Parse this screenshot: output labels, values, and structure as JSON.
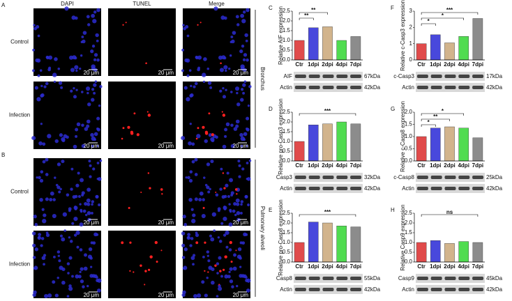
{
  "microscopy": {
    "columns": [
      "DAPI",
      "TUNEL",
      "Merge"
    ],
    "rows": [
      "Control",
      "Infection"
    ],
    "groups": [
      {
        "panel": "A",
        "tissue": "Bronchus"
      },
      {
        "panel": "B",
        "tissue": "Pulmonary alveoli"
      }
    ],
    "scale_bar": "20 μm"
  },
  "chart_data": [
    {
      "type": "bar",
      "panel": "C",
      "y_label": "Relative AIF expression",
      "categories": [
        "Ctr",
        "1dpi",
        "2dpi",
        "4dpi",
        "7dpi"
      ],
      "values": [
        1.0,
        1.65,
        1.7,
        1.0,
        1.2
      ],
      "colors": [
        "#e04b4b",
        "#4848dc",
        "#d2b48c",
        "#50dc50",
        "#8c8c8c"
      ],
      "ylim": [
        0,
        2.5
      ],
      "yticks": [
        {
          "value": 0,
          "label": "0.0"
        },
        0.5,
        {
          "value": 1,
          "label": "1.0"
        },
        1.5,
        {
          "value": 2,
          "label": "2.0"
        },
        2.5
      ],
      "annotations": [
        {
          "text": "**",
          "from": "Ctr",
          "to": "1dpi"
        },
        {
          "text": "**",
          "from": "Ctr",
          "to": "2dpi"
        }
      ],
      "blots": [
        {
          "protein": "AIF",
          "size": "67kDa"
        },
        {
          "protein": "Actin",
          "size": "42kDa"
        }
      ]
    },
    {
      "type": "bar",
      "panel": "D",
      "y_label": "Relative pro-Casp3 expression",
      "categories": [
        "Ctr",
        "1dpi",
        "2dpi",
        "4dpi",
        "7dpi"
      ],
      "values": [
        1.0,
        1.85,
        1.9,
        2.0,
        1.9
      ],
      "colors": [
        "#e04b4b",
        "#4848dc",
        "#d2b48c",
        "#50dc50",
        "#8c8c8c"
      ],
      "ylim": [
        0,
        2.5
      ],
      "yticks": [
        {
          "value": 0,
          "label": "0.0"
        },
        0.5,
        {
          "value": 1,
          "label": "1.0"
        },
        1.5,
        {
          "value": 2,
          "label": "2.0"
        },
        2.5
      ],
      "annotations": [
        {
          "text": "***",
          "from": "Ctr",
          "to": "7dpi"
        }
      ],
      "blots": [
        {
          "protein": "Casp3",
          "size": "32kDa"
        },
        {
          "protein": "Actin",
          "size": "42kDa"
        }
      ]
    },
    {
      "type": "bar",
      "panel": "E",
      "y_label": "Relative pro-Casp8 expression",
      "categories": [
        "Ctr",
        "1dpi",
        "2dpi",
        "4dpi",
        "7dpi"
      ],
      "values": [
        1.0,
        2.05,
        2.0,
        1.85,
        1.8
      ],
      "colors": [
        "#e04b4b",
        "#4848dc",
        "#d2b48c",
        "#50dc50",
        "#8c8c8c"
      ],
      "ylim": [
        0,
        2.5
      ],
      "yticks": [
        {
          "value": 0,
          "label": "0.0"
        },
        0.5,
        {
          "value": 1,
          "label": "1.0"
        },
        1.5,
        {
          "value": 2,
          "label": "2.0"
        },
        2.5
      ],
      "annotations": [
        {
          "text": "***",
          "from": "Ctr",
          "to": "7dpi"
        }
      ],
      "blots": [
        {
          "protein": "Casp8",
          "size": "55kDa"
        },
        {
          "protein": "Actin",
          "size": "42kDa"
        }
      ]
    },
    {
      "type": "bar",
      "panel": "F",
      "y_label": "Relative c-Casp3 expression",
      "categories": [
        "Ctr",
        "1dpi",
        "2dpi",
        "4dpi",
        "7dpi"
      ],
      "values": [
        1.0,
        1.55,
        1.05,
        1.45,
        2.55
      ],
      "colors": [
        "#e04b4b",
        "#4848dc",
        "#d2b48c",
        "#50dc50",
        "#8c8c8c"
      ],
      "ylim": [
        0,
        3
      ],
      "yticks": [
        0,
        1,
        2,
        3
      ],
      "annotations": [
        {
          "text": "*",
          "from": "Ctr",
          "to": "1dpi"
        },
        {
          "text": "*",
          "from": "Ctr",
          "to": "4dpi"
        },
        {
          "text": "***",
          "from": "Ctr",
          "to": "7dpi"
        }
      ],
      "blots": [
        {
          "protein": "c-Casp3",
          "size": "17kDa"
        },
        {
          "protein": "Actin",
          "size": "42kDa"
        }
      ]
    },
    {
      "type": "bar",
      "panel": "G",
      "y_label": "Relative c-Casp8 expression",
      "categories": [
        "Ctr",
        "1dpi",
        "2dpi",
        "4dpi",
        "7dpi"
      ],
      "values": [
        1.0,
        1.35,
        1.4,
        1.35,
        0.95
      ],
      "colors": [
        "#e04b4b",
        "#4848dc",
        "#d2b48c",
        "#50dc50",
        "#8c8c8c"
      ],
      "ylim": [
        0,
        2
      ],
      "yticks": [
        {
          "value": 0,
          "label": "0.0"
        },
        0.5,
        {
          "value": 1,
          "label": "1.0"
        },
        1.5,
        {
          "value": 2,
          "label": "2.0"
        }
      ],
      "annotations": [
        {
          "text": "*",
          "from": "Ctr",
          "to": "1dpi"
        },
        {
          "text": "**",
          "from": "Ctr",
          "to": "2dpi"
        },
        {
          "text": "*",
          "from": "Ctr",
          "to": "4dpi"
        }
      ],
      "blots": [
        {
          "protein": "c-Casp8",
          "size": "25kDa"
        },
        {
          "protein": "Actin",
          "size": "42kDa"
        }
      ]
    },
    {
      "type": "bar",
      "panel": "H",
      "y_label": "Relative Casp9 expression",
      "categories": [
        "Ctr",
        "1dpi",
        "2dpi",
        "4dpi",
        "7dpi"
      ],
      "values": [
        1.0,
        1.1,
        0.95,
        1.05,
        1.0
      ],
      "colors": [
        "#e04b4b",
        "#4848dc",
        "#d2b48c",
        "#50dc50",
        "#8c8c8c"
      ],
      "ylim": [
        0,
        2.5
      ],
      "yticks": [
        {
          "value": 0,
          "label": "0.0"
        },
        0.5,
        {
          "value": 1,
          "label": "1.0"
        },
        1.5,
        {
          "value": 2,
          "label": "2.0"
        },
        2.5
      ],
      "annotations": [
        {
          "text": "ns",
          "from": "Ctr",
          "to": "7dpi"
        }
      ],
      "blots": [
        {
          "protein": "Casp9",
          "size": "45kDa"
        },
        {
          "protein": "Actin",
          "size": "42kDa"
        }
      ]
    }
  ]
}
